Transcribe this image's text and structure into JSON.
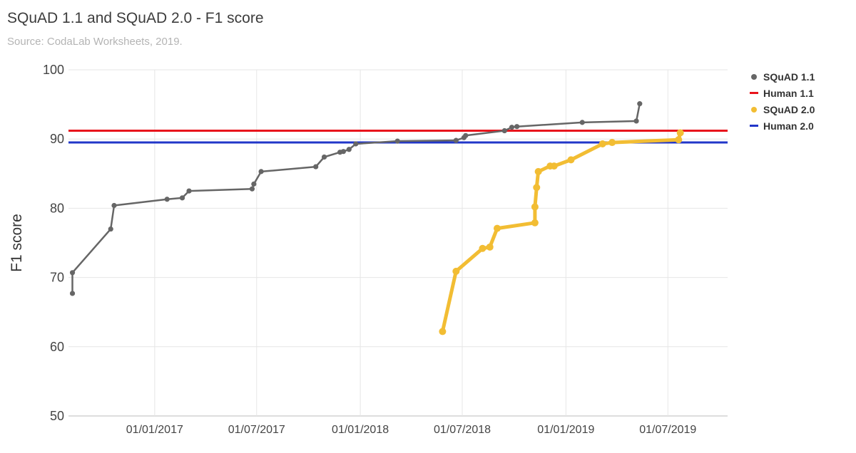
{
  "title": "SQuAD 1.1 and SQuAD 2.0 - F1 score",
  "subtitle": "Source: CodaLab Worksheets, 2019.",
  "chart_data": {
    "type": "line",
    "title": "SQuAD 1.1 and SQuAD 2.0 - F1 score",
    "subtitle": "Source: CodaLab Worksheets, 2019.",
    "ylabel": "F1 score",
    "xlabel": "",
    "ylim": [
      50,
      100
    ],
    "xlim": [
      "2016-08-01",
      "2019-10-15"
    ],
    "y_ticks": [
      50,
      60,
      70,
      80,
      90,
      100
    ],
    "x_ticks": [
      {
        "label": "01/01/2017",
        "date": "2017-01-01"
      },
      {
        "label": "01/07/2017",
        "date": "2017-07-01"
      },
      {
        "label": "01/01/2018",
        "date": "2018-01-01"
      },
      {
        "label": "01/07/2018",
        "date": "2018-07-01"
      },
      {
        "label": "01/01/2019",
        "date": "2019-01-01"
      },
      {
        "label": "01/07/2019",
        "date": "2019-07-01"
      }
    ],
    "grid": true,
    "legend_position": "right",
    "series": [
      {
        "name": "SQuAD 1.1",
        "color": "#666666",
        "style": "line-markers",
        "points": [
          [
            "2016-08-08",
            67.7
          ],
          [
            "2016-08-08",
            70.7
          ],
          [
            "2016-10-15",
            77.0
          ],
          [
            "2016-10-21",
            80.4
          ],
          [
            "2017-01-23",
            81.3
          ],
          [
            "2017-02-19",
            81.5
          ],
          [
            "2017-03-03",
            82.5
          ],
          [
            "2017-06-23",
            82.8
          ],
          [
            "2017-06-26",
            83.5
          ],
          [
            "2017-07-09",
            85.3
          ],
          [
            "2017-10-14",
            86.0
          ],
          [
            "2017-10-29",
            87.4
          ],
          [
            "2017-11-26",
            88.1
          ],
          [
            "2017-12-02",
            88.2
          ],
          [
            "2017-12-12",
            88.5
          ],
          [
            "2017-12-24",
            89.3
          ],
          [
            "2018-03-08",
            89.7
          ],
          [
            "2018-06-20",
            89.8
          ],
          [
            "2018-07-04",
            90.2
          ],
          [
            "2018-07-07",
            90.5
          ],
          [
            "2018-09-14",
            91.2
          ],
          [
            "2018-09-27",
            91.7
          ],
          [
            "2018-10-06",
            91.8
          ],
          [
            "2019-01-30",
            92.4
          ],
          [
            "2019-05-06",
            92.6
          ],
          [
            "2019-05-12",
            95.1
          ]
        ]
      },
      {
        "name": "Human 1.1",
        "color": "#e8141c",
        "style": "reference-line",
        "value": 91.2
      },
      {
        "name": "SQuAD 2.0",
        "color": "#f2bd33",
        "style": "line-markers",
        "points": [
          [
            "2018-05-27",
            62.2
          ],
          [
            "2018-06-20",
            70.9
          ],
          [
            "2018-08-06",
            74.2
          ],
          [
            "2018-08-19",
            74.4
          ],
          [
            "2018-09-01",
            77.1
          ],
          [
            "2018-11-07",
            77.9
          ],
          [
            "2018-11-07",
            80.2
          ],
          [
            "2018-11-10",
            83.0
          ],
          [
            "2018-11-13",
            85.3
          ],
          [
            "2018-12-04",
            86.1
          ],
          [
            "2018-12-11",
            86.1
          ],
          [
            "2019-01-10",
            87.0
          ],
          [
            "2019-03-07",
            89.3
          ],
          [
            "2019-03-24",
            89.5
          ],
          [
            "2019-07-20",
            89.9
          ],
          [
            "2019-07-23",
            90.9
          ]
        ]
      },
      {
        "name": "Human 2.0",
        "color": "#2136c9",
        "style": "reference-line",
        "value": 89.5
      }
    ]
  }
}
